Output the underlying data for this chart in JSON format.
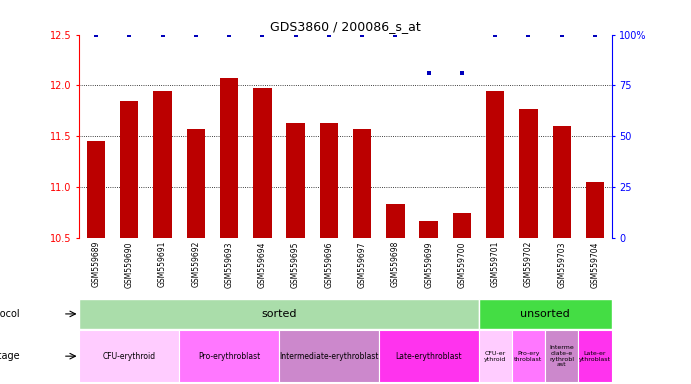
{
  "title": "GDS3860 / 200086_s_at",
  "samples": [
    "GSM559689",
    "GSM559690",
    "GSM559691",
    "GSM559692",
    "GSM559693",
    "GSM559694",
    "GSM559695",
    "GSM559696",
    "GSM559697",
    "GSM559698",
    "GSM559699",
    "GSM559700",
    "GSM559701",
    "GSM559702",
    "GSM559703",
    "GSM559704"
  ],
  "bar_values": [
    11.45,
    11.85,
    11.95,
    11.57,
    12.07,
    11.97,
    11.63,
    11.63,
    11.57,
    10.83,
    10.67,
    10.75,
    11.95,
    11.77,
    11.6,
    11.05
  ],
  "percentile_values": [
    100,
    100,
    100,
    100,
    100,
    100,
    100,
    100,
    100,
    100,
    81,
    81,
    100,
    100,
    100,
    100
  ],
  "ylim_left": [
    10.5,
    12.5
  ],
  "ylim_right": [
    0,
    100
  ],
  "yticks_left": [
    10.5,
    11.0,
    11.5,
    12.0,
    12.5
  ],
  "yticks_right": [
    0,
    25,
    50,
    75,
    100
  ],
  "ytick_labels_right": [
    "0",
    "25",
    "50",
    "75",
    "100%"
  ],
  "bar_color": "#bb0000",
  "percentile_color": "#0000bb",
  "xtick_bg_color": "#cccccc",
  "protocol_sorted_color": "#aaddaa",
  "protocol_unsorted_color": "#44dd44",
  "dev_stage_colors_sorted": [
    "#ffaaff",
    "#ff55ff",
    "#cc99cc",
    "#ff44ee"
  ],
  "dev_stage_colors_unsorted": [
    "#ffaaff",
    "#ff55ff",
    "#cc99cc",
    "#ff44ee"
  ],
  "grid_dotted_values": [
    11.0,
    11.5,
    12.0
  ],
  "protocol_sorted_samples": 12,
  "protocol_unsorted_samples": 4,
  "dev_groups_sorted": [
    {
      "label": "CFU-erythroid",
      "count": 3
    },
    {
      "label": "Pro-erythroblast",
      "count": 3
    },
    {
      "label": "Intermediate-erythroblast",
      "count": 3
    },
    {
      "label": "Late-erythroblast",
      "count": 3
    }
  ],
  "dev_groups_unsorted": [
    {
      "label": "CFU-er\nythroid",
      "count": 1
    },
    {
      "label": "Pro-ery\nthroblast",
      "count": 1
    },
    {
      "label": "Interme\ndiate-e\nrythrobl\nast",
      "count": 1
    },
    {
      "label": "Late-er\nythroblast",
      "count": 1
    }
  ]
}
